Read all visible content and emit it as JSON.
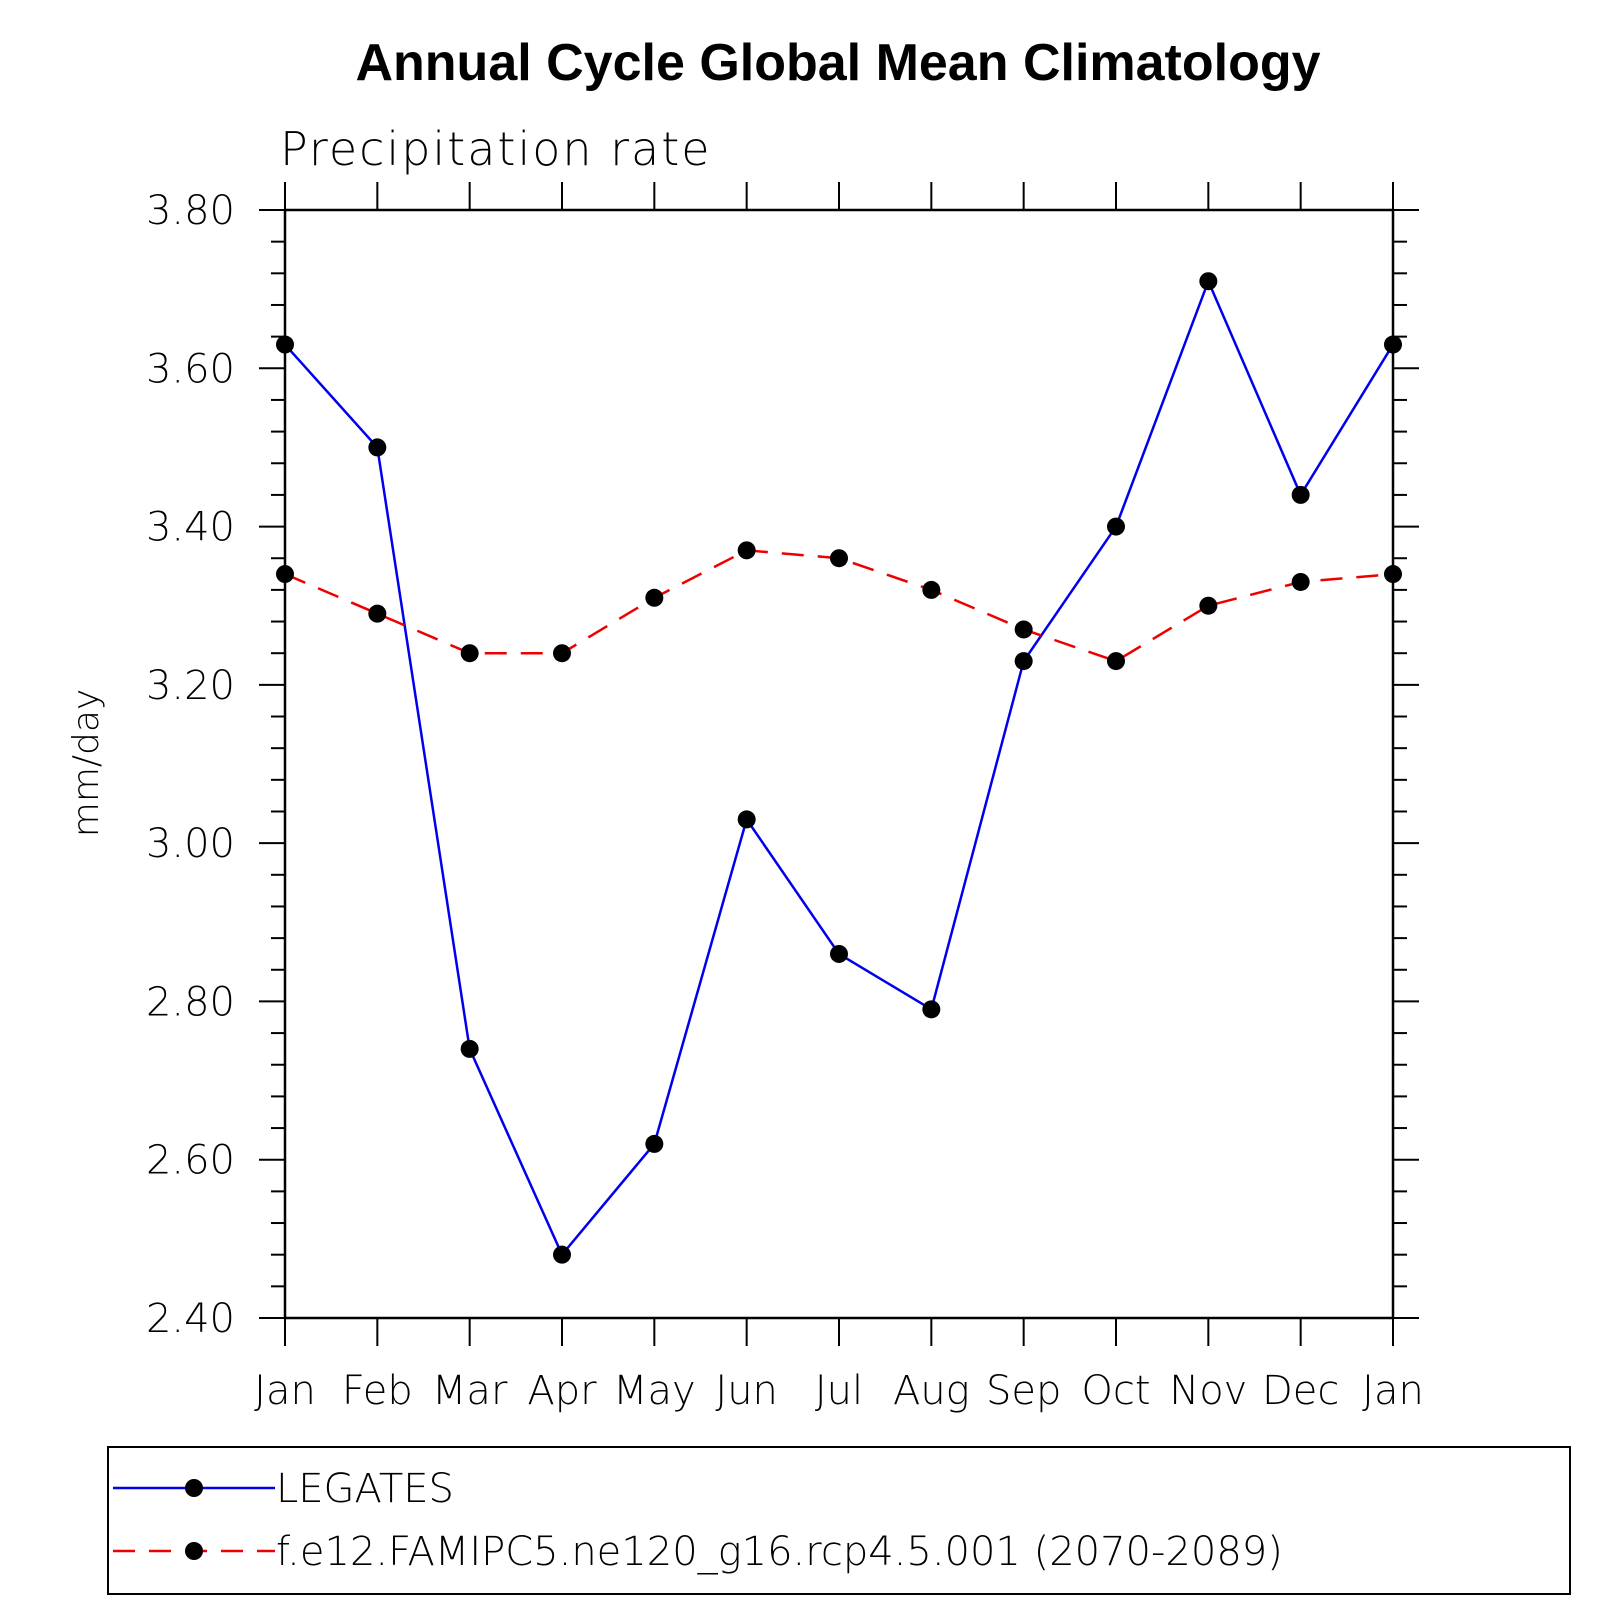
{
  "chart_data": {
    "type": "line",
    "title": "Annual Cycle Global Mean Climatology",
    "subtitle": "Precipitation rate",
    "xlabel": "",
    "ylabel": "mm/day",
    "ylim": [
      2.4,
      3.8
    ],
    "yticks": [
      "2.40",
      "2.60",
      "2.80",
      "3.00",
      "3.20",
      "3.40",
      "3.60",
      "3.80"
    ],
    "categories": [
      "Jan",
      "Feb",
      "Mar",
      "Apr",
      "May",
      "Jun",
      "Jul",
      "Aug",
      "Sep",
      "Oct",
      "Nov",
      "Dec",
      "Jan"
    ],
    "grid": false,
    "legend_position": "bottom",
    "series": [
      {
        "name": "LEGATES",
        "color": "#0000ee",
        "dash": "solid",
        "values": [
          3.63,
          3.5,
          2.74,
          2.48,
          2.62,
          3.03,
          2.86,
          2.79,
          3.23,
          3.4,
          3.71,
          3.44,
          3.63
        ]
      },
      {
        "name": "f.e12.FAMIPC5.ne120_g16.rcp4.5.001 (2070-2089)",
        "color": "#ee0000",
        "dash": "dashed",
        "values": [
          3.34,
          3.29,
          3.24,
          3.24,
          3.31,
          3.37,
          3.36,
          3.32,
          3.27,
          3.23,
          3.3,
          3.33,
          3.34
        ]
      }
    ]
  }
}
